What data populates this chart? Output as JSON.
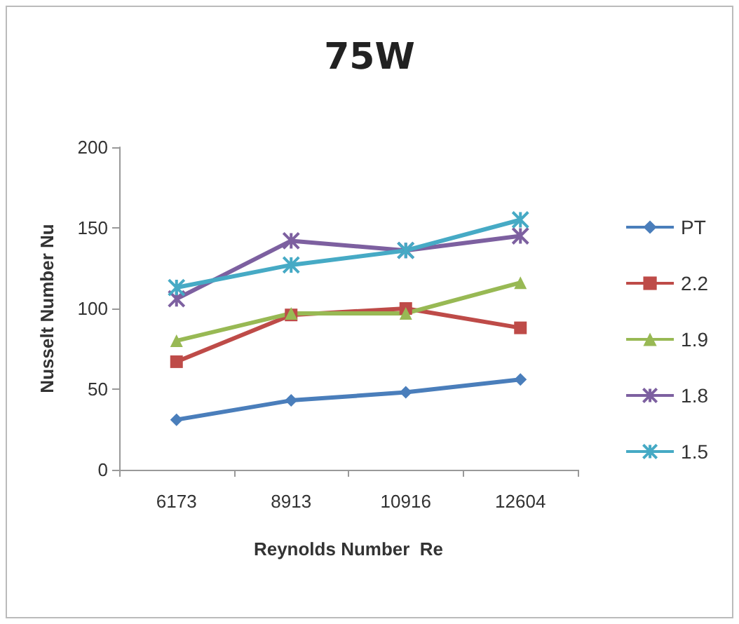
{
  "chart_data": {
    "type": "line",
    "title": "75W",
    "xlabel": "Reynolds Number  Re",
    "ylabel": "Nusselt Number Nu",
    "categories": [
      "6173",
      "8913",
      "10916",
      "12604"
    ],
    "series": [
      {
        "name": "PT",
        "color": "#4a7ebb",
        "marker": "diamond",
        "values": [
          31,
          43,
          48,
          56
        ]
      },
      {
        "name": "2.2",
        "color": "#be4b48",
        "marker": "square",
        "values": [
          67,
          96,
          100,
          88
        ]
      },
      {
        "name": "1.9",
        "color": "#98b954",
        "marker": "triangle",
        "values": [
          80,
          97,
          97,
          116
        ]
      },
      {
        "name": "1.8",
        "color": "#7d60a0",
        "marker": "cross",
        "values": [
          106,
          142,
          136,
          145
        ]
      },
      {
        "name": "1.5",
        "color": "#46aac5",
        "marker": "cross",
        "values": [
          113,
          127,
          136,
          155
        ]
      }
    ],
    "ylim": [
      0,
      200
    ],
    "yticks": [
      0,
      50,
      100,
      150,
      200
    ],
    "grid": false,
    "legend": "right",
    "line_style": "solid"
  }
}
